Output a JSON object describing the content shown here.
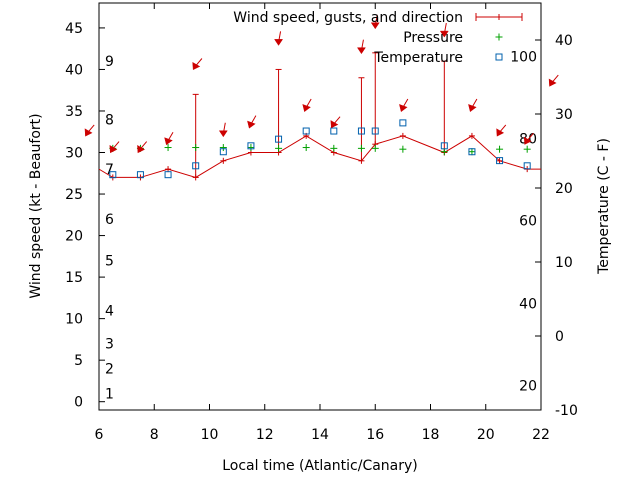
{
  "chart_data": {
    "type": "line",
    "title": "",
    "xlabel": "Local time (Atlantic/Canary)",
    "ylabel_left": "Wind speed (kt - Beaufort)",
    "ylabel_right": "Temperature (C - F)",
    "xlim": [
      6,
      22
    ],
    "ylim_left": [
      -1,
      48
    ],
    "ylim_right": [
      -10,
      45
    ],
    "x_ticks": [
      "6",
      "8",
      "10",
      "12",
      "14",
      "16",
      "18",
      "20",
      "22"
    ],
    "y_left_ticks": [
      "0",
      "5",
      "10",
      "15",
      "20",
      "25",
      "30",
      "35",
      "40",
      "45"
    ],
    "y_right_ticks_c": [
      "-10",
      "0",
      "10",
      "20",
      "30",
      "40"
    ],
    "beaufort_scale": [
      {
        "label": "1",
        "kt": 1
      },
      {
        "label": "2",
        "kt": 4
      },
      {
        "label": "3",
        "kt": 7
      },
      {
        "label": "4",
        "kt": 11
      },
      {
        "label": "5",
        "kt": 17
      },
      {
        "label": "6",
        "kt": 22
      },
      {
        "label": "7",
        "kt": 28
      },
      {
        "label": "8",
        "kt": 34
      },
      {
        "label": "9",
        "kt": 41
      }
    ],
    "fahrenheit_scale": [
      {
        "label": "20",
        "c": -6.7
      },
      {
        "label": "40",
        "c": 4.4
      },
      {
        "label": "60",
        "c": 15.6
      },
      {
        "label": "80",
        "c": 26.7
      },
      {
        "label": "100",
        "c": 37.8
      }
    ],
    "legend": {
      "position": "top-right",
      "entries": [
        {
          "label": "Wind speed, gusts, and direction",
          "color": "#cc0000",
          "marker": "line-plus"
        },
        {
          "label": "Pressure",
          "color": "#00a000",
          "marker": "plus"
        },
        {
          "label": "Temperature",
          "color": "#0060ad",
          "marker": "square"
        }
      ]
    },
    "series": [
      {
        "name": "Wind speed, gusts, and direction",
        "color": "#cc0000",
        "x": [
          6,
          6.5,
          7.5,
          8.5,
          9.5,
          10.5,
          11.5,
          12.5,
          13.5,
          14.5,
          15.5,
          16,
          17,
          18.5,
          19.5,
          20.5,
          21.5,
          22
        ],
        "y": [
          28,
          27,
          27,
          28,
          27,
          29,
          30,
          30,
          32,
          30,
          29,
          31,
          32,
          30,
          32,
          29,
          28,
          28
        ],
        "gusts": [
          null,
          null,
          null,
          null,
          37,
          null,
          null,
          40,
          null,
          null,
          39,
          42,
          null,
          41,
          null,
          null,
          null,
          null
        ],
        "direction_deg": [
          null,
          210,
          210,
          200,
          210,
          180,
          200,
          180,
          200,
          210,
          180,
          180,
          200,
          180,
          200,
          210,
          210,
          null
        ],
        "arrow_level_kt": [
          null,
          30.5,
          30.5,
          31.5,
          40.5,
          32.5,
          33.5,
          43.5,
          35.5,
          33.5,
          42.5,
          45.5,
          35.5,
          44.5,
          35.5,
          32.5,
          31.5,
          null
        ],
        "arrow_extra": [
          {
            "x": 5.6,
            "kt": 32.5,
            "deg": 210
          },
          {
            "x": 22.4,
            "kt": 38.5,
            "deg": 210
          }
        ]
      },
      {
        "name": "Pressure",
        "color": "#00a000",
        "x": [
          6.5,
          7.5,
          8.5,
          9.5,
          10.5,
          11.5,
          12.5,
          13.5,
          14.5,
          15.5,
          16,
          17,
          18.5,
          19.5,
          20.5,
          21.5
        ],
        "y": [
          30.5,
          30.5,
          30.6,
          30.6,
          30.6,
          30.6,
          30.5,
          30.6,
          30.5,
          30.5,
          30.5,
          30.4,
          30.1,
          30.1,
          30.4,
          30.4
        ]
      },
      {
        "name": "Temperature",
        "color": "#0060ad",
        "x": [
          6.5,
          7.5,
          8.5,
          9.5,
          10.5,
          11.5,
          12.5,
          13.5,
          14.5,
          15.5,
          16,
          17,
          18.5,
          19.5,
          20.5,
          21.5
        ],
        "y_c": [
          21.8,
          21.8,
          21.8,
          23,
          24.9,
          25.7,
          26.6,
          27.7,
          27.7,
          27.7,
          27.7,
          28.8,
          25.7,
          24.9,
          23.7,
          23
        ]
      }
    ]
  }
}
